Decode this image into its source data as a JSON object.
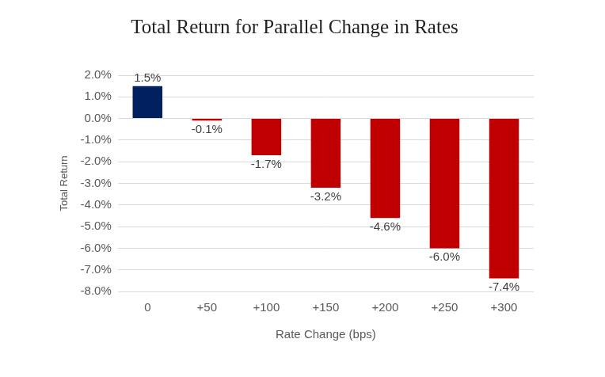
{
  "chart_data": {
    "type": "bar",
    "title": "Total Return for Parallel Change in Rates",
    "x_label": "Rate Change (bps)",
    "y_label": "Total Return",
    "categories": [
      "0",
      "+50",
      "+100",
      "+150",
      "+200",
      "+250",
      "+300"
    ],
    "values": [
      1.5,
      -0.1,
      -1.7,
      -3.2,
      -4.6,
      -6.0,
      -7.4
    ],
    "value_labels": [
      "1.5%",
      "-0.1%",
      "-1.7%",
      "-3.2%",
      "-4.6%",
      "-6.0%",
      "-7.4%"
    ],
    "colors": [
      "#002060",
      "#c00000",
      "#c00000",
      "#c00000",
      "#c00000",
      "#c00000",
      "#c00000"
    ],
    "ylim": [
      -8,
      2
    ],
    "yticks": [
      {
        "value": -8,
        "label": "-8.0%"
      },
      {
        "value": -7,
        "label": "-7.0%"
      },
      {
        "value": -6,
        "label": "-6.0%"
      },
      {
        "value": -5,
        "label": "-5.0%"
      },
      {
        "value": -4,
        "label": "-4.0%"
      },
      {
        "value": -3,
        "label": "-3.0%"
      },
      {
        "value": -2,
        "label": "-2.0%"
      },
      {
        "value": -1,
        "label": "-1.0%"
      },
      {
        "value": 0,
        "label": "0.0%"
      },
      {
        "value": 1,
        "label": "1.0%"
      },
      {
        "value": 2,
        "label": "2.0%"
      }
    ],
    "grid": true,
    "data_labels": true
  }
}
